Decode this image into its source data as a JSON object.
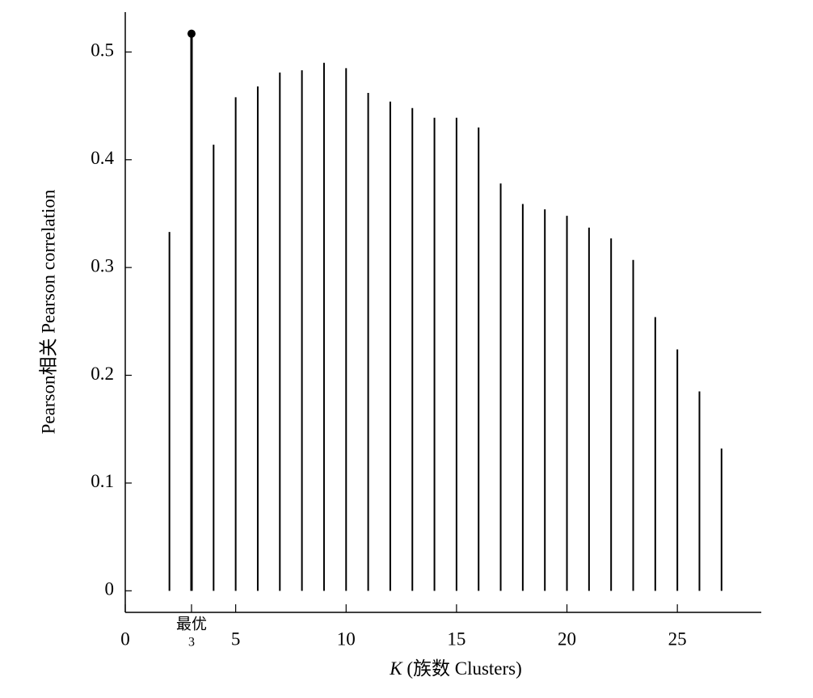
{
  "chart_data": {
    "type": "stem",
    "xlabel": {
      "var": "K",
      "text": "(族数 Clusters)"
    },
    "ylabel": "Pearson相关 Pearson correlation",
    "x": [
      2,
      3,
      4,
      5,
      6,
      7,
      8,
      9,
      10,
      11,
      12,
      13,
      14,
      15,
      16,
      17,
      18,
      19,
      20,
      21,
      22,
      23,
      24,
      25,
      26,
      27
    ],
    "values": [
      0.333,
      0.517,
      0.414,
      0.458,
      0.468,
      0.481,
      0.483,
      0.49,
      0.485,
      0.462,
      0.454,
      0.448,
      0.439,
      0.439,
      0.43,
      0.378,
      0.359,
      0.354,
      0.348,
      0.337,
      0.327,
      0.307,
      0.254,
      0.224,
      0.185,
      0.132
    ],
    "color": "#000000",
    "xlim": [
      0,
      28.8
    ],
    "ylim": [
      -0.02,
      0.537
    ],
    "xticks": [
      0,
      5,
      10,
      15,
      20,
      25
    ],
    "yticks": [
      0,
      0.1,
      0.2,
      0.3,
      0.4,
      0.5
    ],
    "annotation": {
      "label": "最优",
      "x": 3
    }
  }
}
